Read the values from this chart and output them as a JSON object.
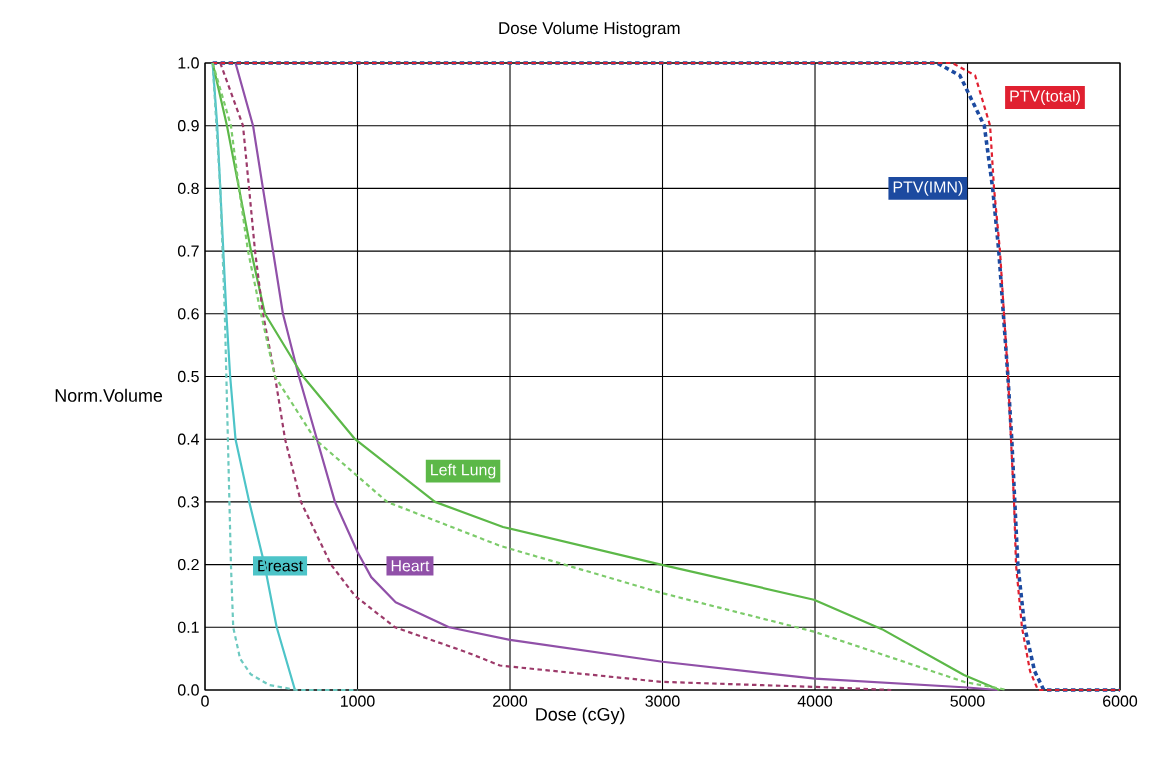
{
  "chart_data": {
    "type": "line",
    "title": "Dose Volume Histogram",
    "xlabel": "Dose (cGy)",
    "ylabel": "Norm.Volume",
    "xlim": [
      0,
      6000
    ],
    "ylim": [
      0,
      1
    ],
    "xticks": [
      0,
      1000,
      2000,
      3000,
      4000,
      5000,
      6000
    ],
    "yticks": [
      {
        "value": 0,
        "label": "0.0"
      },
      {
        "value": 0.1,
        "label": "0.1"
      },
      {
        "value": 0.2,
        "label": "0.2"
      },
      {
        "value": 0.3,
        "label": "0.3"
      },
      {
        "value": 0.4,
        "label": "0.4"
      },
      {
        "value": 0.5,
        "label": "0.5"
      },
      {
        "value": 0.6,
        "label": "0.6"
      },
      {
        "value": 0.7,
        "label": "0.7"
      },
      {
        "value": 0.8,
        "label": "0.8"
      },
      {
        "value": 0.9,
        "label": "0.9"
      },
      {
        "value": 1,
        "label": "1.0"
      }
    ],
    "grid": true,
    "series": [
      {
        "color": "#4dc4c8",
        "line_style": "solid",
        "x": [
          50,
          80,
          100,
          120,
          140,
          165,
          200,
          290,
          390,
          470,
          590
        ],
        "values": [
          1,
          0.9,
          0.8,
          0.7,
          0.6,
          0.5,
          0.4,
          0.3,
          0.2,
          0.1,
          0
        ]
      },
      {
        "color": "#9050a8",
        "line_style": "solid",
        "x": [
          200,
          315,
          380,
          446,
          511,
          616,
          734,
          852,
          1000,
          1090,
          1250,
          1600,
          2000,
          3000,
          4000,
          5000,
          5200
        ],
        "values": [
          1,
          0.9,
          0.8,
          0.7,
          0.6,
          0.5,
          0.4,
          0.3,
          0.22,
          0.18,
          0.14,
          0.1,
          0.08,
          0.045,
          0.018,
          0.004,
          0
        ]
      },
      {
        "color": "#5cb848",
        "line_style": "solid",
        "x": [
          50,
          144,
          223,
          302,
          393,
          643,
          984,
          1508,
          1954,
          2990,
          3993,
          4439,
          4977,
          5210
        ],
        "values": [
          1,
          0.9,
          0.8,
          0.7,
          0.6,
          0.5,
          0.4,
          0.3,
          0.26,
          0.2,
          0.144,
          0.097,
          0.024,
          0
        ]
      },
      {
        "color": "#1c4aa0",
        "line_style": "dashed",
        "x": [
          50,
          4800,
          4950,
          5110,
          5165,
          5205,
          5235,
          5265,
          5290,
          5310,
          5330,
          5375,
          5440,
          5500,
          6000
        ],
        "values": [
          1,
          1,
          0.98,
          0.9,
          0.8,
          0.7,
          0.6,
          0.5,
          0.4,
          0.3,
          0.2,
          0.1,
          0.03,
          0,
          0
        ]
      },
      {
        "color": "#e02030",
        "line_style": "dashed",
        "x": [
          50,
          4900,
          5050,
          5148,
          5174,
          5213,
          5239,
          5266,
          5285,
          5305,
          5318,
          5357,
          5410,
          5462,
          6000
        ],
        "values": [
          1,
          1,
          0.98,
          0.9,
          0.8,
          0.7,
          0.6,
          0.5,
          0.4,
          0.3,
          0.2,
          0.1,
          0.03,
          0,
          0
        ]
      },
      {
        "color": "#6cc9c0",
        "line_style": "dashed",
        "x": [
          50,
          75,
          100,
          115,
          130,
          140,
          150,
          160,
          170,
          185,
          230,
          300,
          420,
          600,
          1000
        ],
        "values": [
          1,
          0.9,
          0.8,
          0.7,
          0.6,
          0.5,
          0.4,
          0.3,
          0.2,
          0.1,
          0.05,
          0.025,
          0.008,
          0,
          0
        ]
      },
      {
        "color": "#9c3a6a",
        "line_style": "dashed",
        "x": [
          100,
          249,
          289,
          328,
          380,
          459,
          525,
          629,
          826,
          984,
          1246,
          1718,
          1934,
          2990,
          3993,
          4500
        ],
        "values": [
          1,
          0.9,
          0.8,
          0.7,
          0.6,
          0.5,
          0.4,
          0.3,
          0.2,
          0.15,
          0.1,
          0.06,
          0.039,
          0.013,
          0.005,
          0
        ]
      },
      {
        "color": "#7ccb6a",
        "line_style": "dashed",
        "x": [
          50,
          170,
          223,
          282,
          367,
          459,
          721,
          1194,
          1934,
          2990,
          3993,
          4977,
          5260
        ],
        "values": [
          1,
          0.9,
          0.8,
          0.7,
          0.6,
          0.5,
          0.4,
          0.3,
          0.23,
          0.155,
          0.093,
          0.013,
          0
        ]
      }
    ],
    "annotations": [
      "Breast",
      "Heart",
      "Left Lung",
      "PTV(IMN)",
      "PTV(total)"
    ]
  }
}
